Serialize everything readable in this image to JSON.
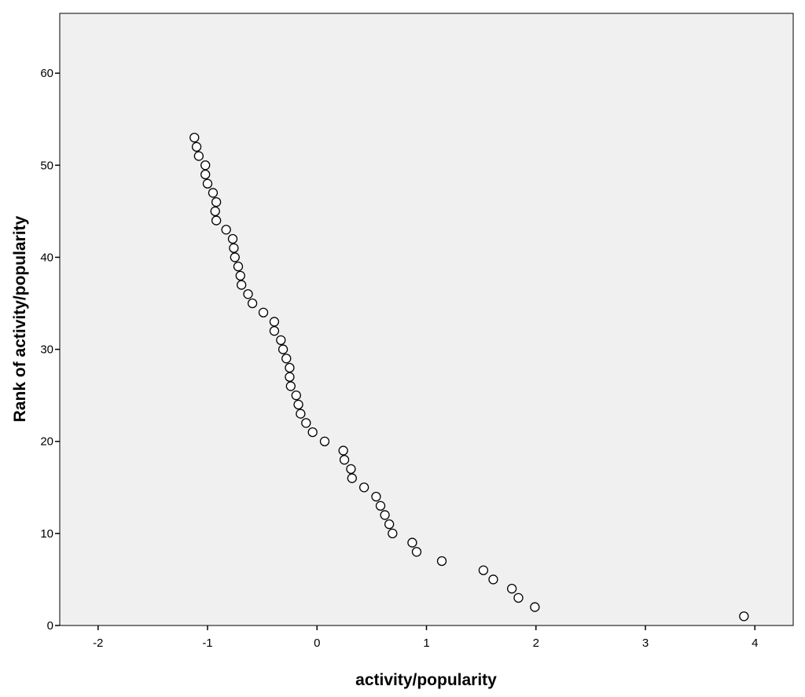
{
  "chart_data": {
    "type": "scatter",
    "title": "",
    "xlabel": "activity/popularity",
    "ylabel": "Rank of activity/popularity",
    "xlim": [
      -2.35,
      4.35
    ],
    "ylim": [
      0,
      66.5
    ],
    "xticks": [
      -2,
      -1,
      0,
      1,
      2,
      3,
      4
    ],
    "yticks": [
      0,
      10,
      20,
      30,
      40,
      50,
      60
    ],
    "grid": false,
    "colors": {
      "plot_background": "#f0f0f0",
      "marker_fill": "#ffffff",
      "marker_edge": "#000000"
    },
    "marker": "open-circle",
    "points": [
      {
        "x": -1.12,
        "y": 53
      },
      {
        "x": -1.1,
        "y": 52
      },
      {
        "x": -1.08,
        "y": 51
      },
      {
        "x": -1.02,
        "y": 50
      },
      {
        "x": -1.02,
        "y": 49
      },
      {
        "x": -1.0,
        "y": 48
      },
      {
        "x": -0.95,
        "y": 47
      },
      {
        "x": -0.92,
        "y": 46
      },
      {
        "x": -0.93,
        "y": 45
      },
      {
        "x": -0.92,
        "y": 44
      },
      {
        "x": -0.83,
        "y": 43
      },
      {
        "x": -0.77,
        "y": 42
      },
      {
        "x": -0.76,
        "y": 41
      },
      {
        "x": -0.75,
        "y": 40
      },
      {
        "x": -0.72,
        "y": 39
      },
      {
        "x": -0.7,
        "y": 38
      },
      {
        "x": -0.69,
        "y": 37
      },
      {
        "x": -0.63,
        "y": 36
      },
      {
        "x": -0.59,
        "y": 35
      },
      {
        "x": -0.49,
        "y": 34
      },
      {
        "x": -0.39,
        "y": 33
      },
      {
        "x": -0.39,
        "y": 32
      },
      {
        "x": -0.33,
        "y": 31
      },
      {
        "x": -0.31,
        "y": 30
      },
      {
        "x": -0.28,
        "y": 29
      },
      {
        "x": -0.25,
        "y": 28
      },
      {
        "x": -0.25,
        "y": 27
      },
      {
        "x": -0.24,
        "y": 26
      },
      {
        "x": -0.19,
        "y": 25
      },
      {
        "x": -0.17,
        "y": 24
      },
      {
        "x": -0.15,
        "y": 23
      },
      {
        "x": -0.1,
        "y": 22
      },
      {
        "x": -0.04,
        "y": 21
      },
      {
        "x": 0.07,
        "y": 20
      },
      {
        "x": 0.24,
        "y": 19
      },
      {
        "x": 0.25,
        "y": 18
      },
      {
        "x": 0.31,
        "y": 17
      },
      {
        "x": 0.32,
        "y": 16
      },
      {
        "x": 0.43,
        "y": 15
      },
      {
        "x": 0.54,
        "y": 14
      },
      {
        "x": 0.58,
        "y": 13
      },
      {
        "x": 0.62,
        "y": 12
      },
      {
        "x": 0.66,
        "y": 11
      },
      {
        "x": 0.69,
        "y": 10
      },
      {
        "x": 0.87,
        "y": 9
      },
      {
        "x": 0.91,
        "y": 8
      },
      {
        "x": 1.14,
        "y": 7
      },
      {
        "x": 1.52,
        "y": 6
      },
      {
        "x": 1.61,
        "y": 5
      },
      {
        "x": 1.78,
        "y": 4
      },
      {
        "x": 1.84,
        "y": 3
      },
      {
        "x": 1.99,
        "y": 2
      },
      {
        "x": 3.9,
        "y": 1
      }
    ]
  }
}
